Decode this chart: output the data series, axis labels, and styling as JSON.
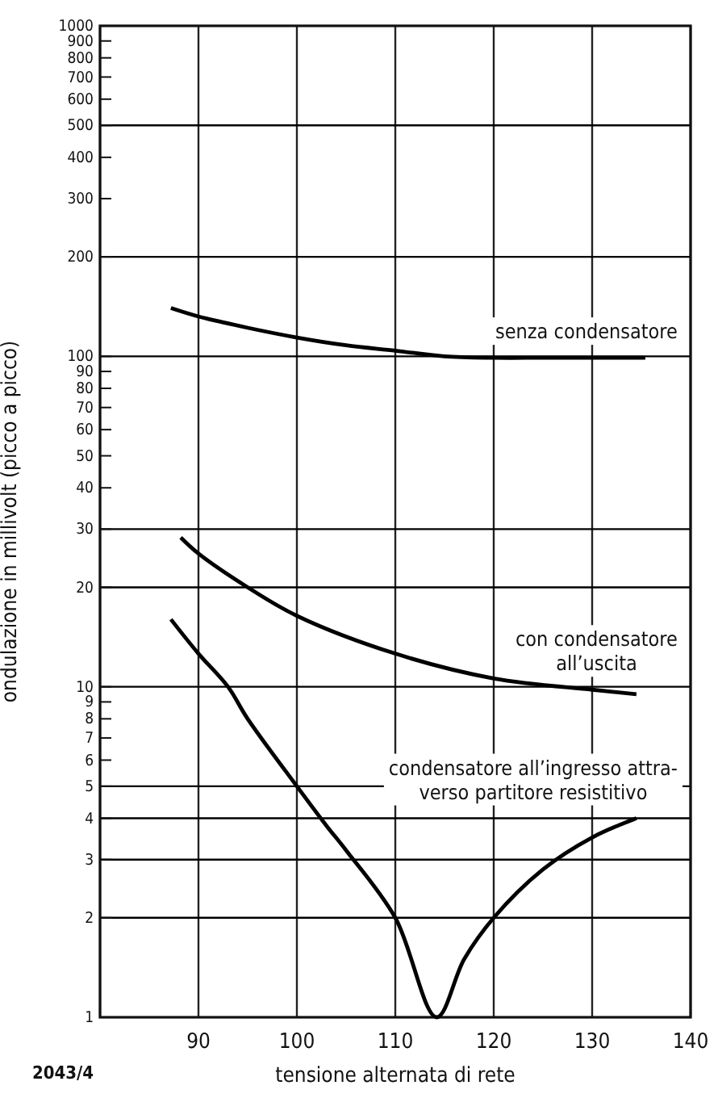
{
  "chart_data": {
    "type": "line",
    "xlabel": "tensione alternata di rete",
    "ylabel": "ondulazione in millivolt (picco a picco)",
    "xlim": [
      80,
      140
    ],
    "xticks": [
      {
        "value": 80,
        "label": null
      },
      90,
      100,
      110,
      120,
      130,
      140
    ],
    "ylim": [
      1,
      1000
    ],
    "log": true,
    "yticks": [
      1000,
      900,
      800,
      700,
      600,
      500,
      400,
      300,
      200,
      100,
      90,
      80,
      70,
      60,
      50,
      40,
      30,
      20,
      10,
      9,
      8,
      7,
      6,
      5,
      4,
      3,
      2,
      1
    ],
    "grid": "x",
    "marker": "none",
    "line_style": "solid",
    "ref_lines": [
      {
        "axis": "y",
        "value": 500,
        "color": "#000000"
      },
      {
        "axis": "y",
        "value": 200,
        "color": "#000000"
      },
      {
        "axis": "y",
        "value": 100,
        "color": "#000000"
      },
      {
        "axis": "y",
        "value": 30,
        "color": "#000000"
      },
      {
        "axis": "y",
        "value": 20,
        "color": "#000000"
      },
      {
        "axis": "y",
        "value": 10,
        "color": "#000000"
      },
      {
        "axis": "y",
        "value": 5,
        "color": "#000000"
      },
      {
        "axis": "y",
        "value": 4,
        "color": "#000000"
      },
      {
        "axis": "y",
        "value": 3,
        "color": "#000000"
      },
      {
        "axis": "y",
        "value": 2,
        "color": "#000000"
      }
    ],
    "series": [
      {
        "name": "senza condensatore",
        "color": "#000000",
        "x": [
          87.2,
          90,
          95,
          100,
          105,
          110,
          115,
          120,
          125,
          130,
          135.4
        ],
        "values": [
          140,
          132,
          122,
          114,
          108,
          104,
          100,
          99,
          99,
          99,
          99
        ]
      },
      {
        "name": "con condensatore\nall’uscita",
        "color": "#000000",
        "x": [
          88.2,
          90,
          95,
          100,
          110,
          120,
          130,
          134.5
        ],
        "values": [
          28.3,
          25.3,
          20,
          16.4,
          12.6,
          10.6,
          9.8,
          9.5
        ]
      },
      {
        "name": "condensatore all’ingresso attra-\nverso partitore resistitivo",
        "color": "#000000",
        "x": [
          87.2,
          90,
          93,
          95,
          100,
          103,
          105,
          110,
          114.2,
          117,
          120,
          125,
          130,
          134.5
        ],
        "values": [
          16,
          12.6,
          10,
          8,
          5,
          3.8,
          3.2,
          2,
          1,
          1.5,
          2,
          2.8,
          3.5,
          4
        ]
      }
    ],
    "annotations": [
      "2043/4"
    ]
  }
}
